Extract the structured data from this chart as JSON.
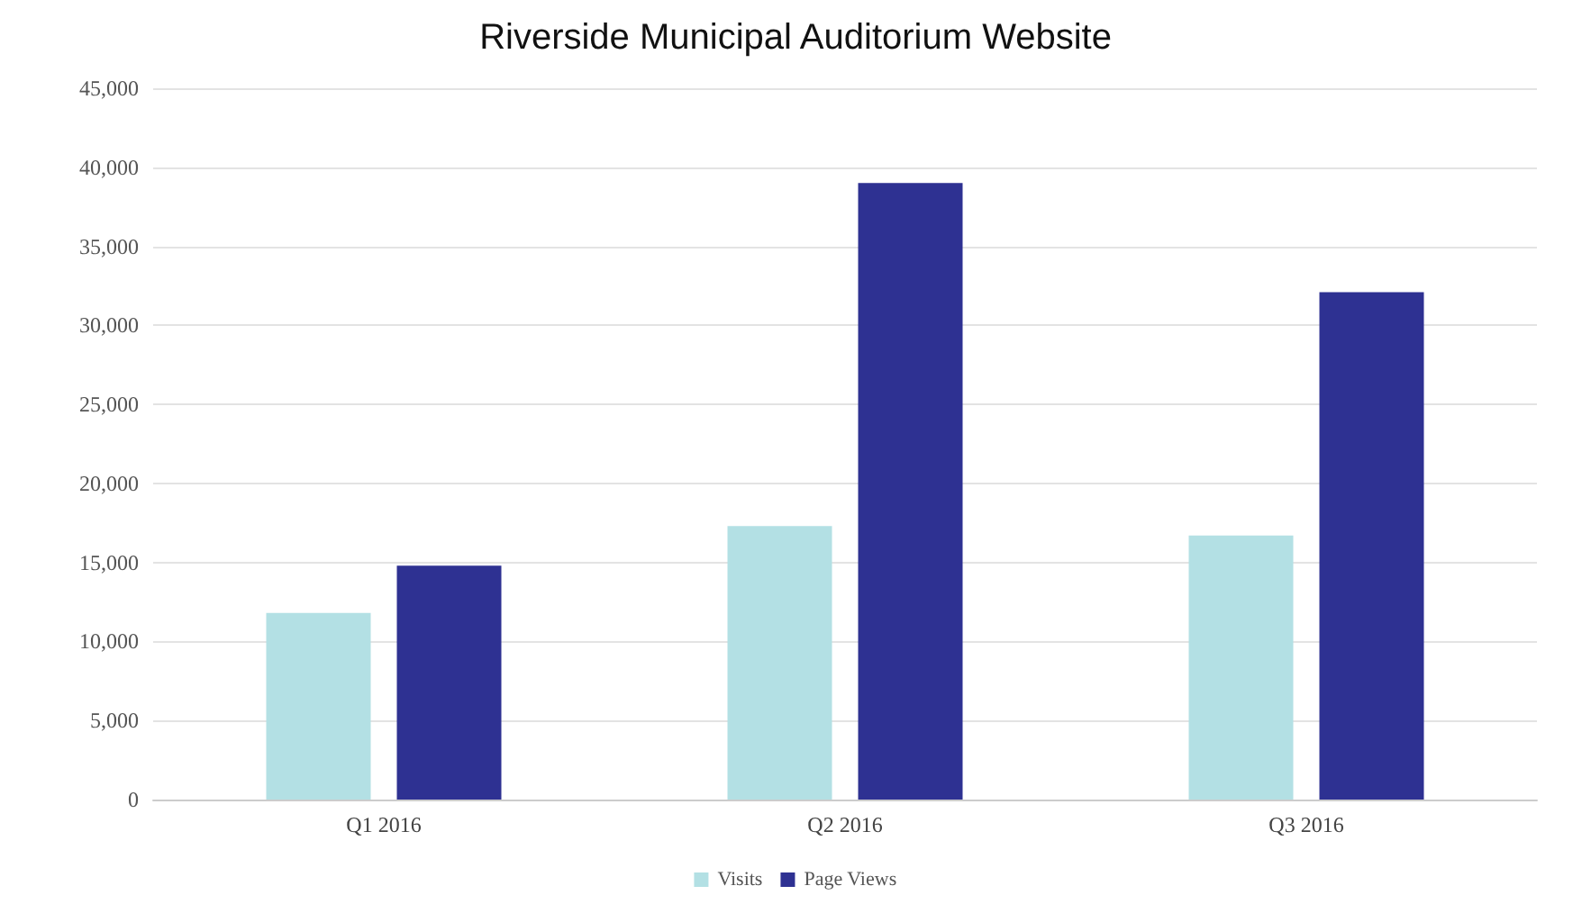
{
  "chart_data": {
    "type": "bar",
    "title": "Riverside Municipal Auditorium Website",
    "categories": [
      "Q1 2016",
      "Q2 2016",
      "Q3 2016"
    ],
    "series": [
      {
        "name": "Visits",
        "color": "#b3e0e4",
        "values": [
          11800,
          17300,
          16700
        ]
      },
      {
        "name": "Page Views",
        "color": "#2e3192",
        "values": [
          14800,
          39000,
          32100
        ]
      }
    ],
    "ylim": [
      0,
      45000
    ],
    "yticks": [
      0,
      {
        "value": 5000,
        "label": "5,000"
      },
      {
        "value": 10000,
        "label": "10,000"
      },
      {
        "value": 15000,
        "label": "15,000"
      },
      {
        "value": 20000,
        "label": "20,000"
      },
      {
        "value": 25000,
        "label": "25,000"
      },
      {
        "value": 30000,
        "label": "30,000"
      },
      {
        "value": 35000,
        "label": "35,000"
      },
      {
        "value": 40000,
        "label": "40,000"
      },
      {
        "value": 45000,
        "label": "45,000"
      }
    ],
    "grid": "y",
    "legend": "bottom"
  }
}
